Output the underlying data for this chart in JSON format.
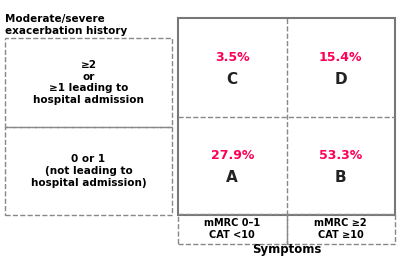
{
  "y_axis_label": "Moderate/severe\nexacerbation history",
  "x_axis_label": "Symptoms",
  "top_left_pct": "3.5%",
  "top_right_pct": "15.4%",
  "bottom_left_pct": "27.9%",
  "bottom_right_pct": "53.3%",
  "top_left_letter": "C",
  "top_right_letter": "D",
  "bottom_left_letter": "A",
  "bottom_right_letter": "B",
  "pct_color": "#FF0055",
  "letter_color": "#222222",
  "box_border_color": "#888888",
  "dashed_color": "#888888",
  "left_top_label": "≥2\nor\n≥1 leading to\nhospital admission",
  "left_bottom_label": "0 or 1\n(not leading to\nhospital admission)",
  "bottom_left_xlabel": "mMRC 0–1\nCAT <10",
  "bottom_right_xlabel": "mMRC ≥2\nCAT ≥10",
  "bg_color": "#ffffff"
}
